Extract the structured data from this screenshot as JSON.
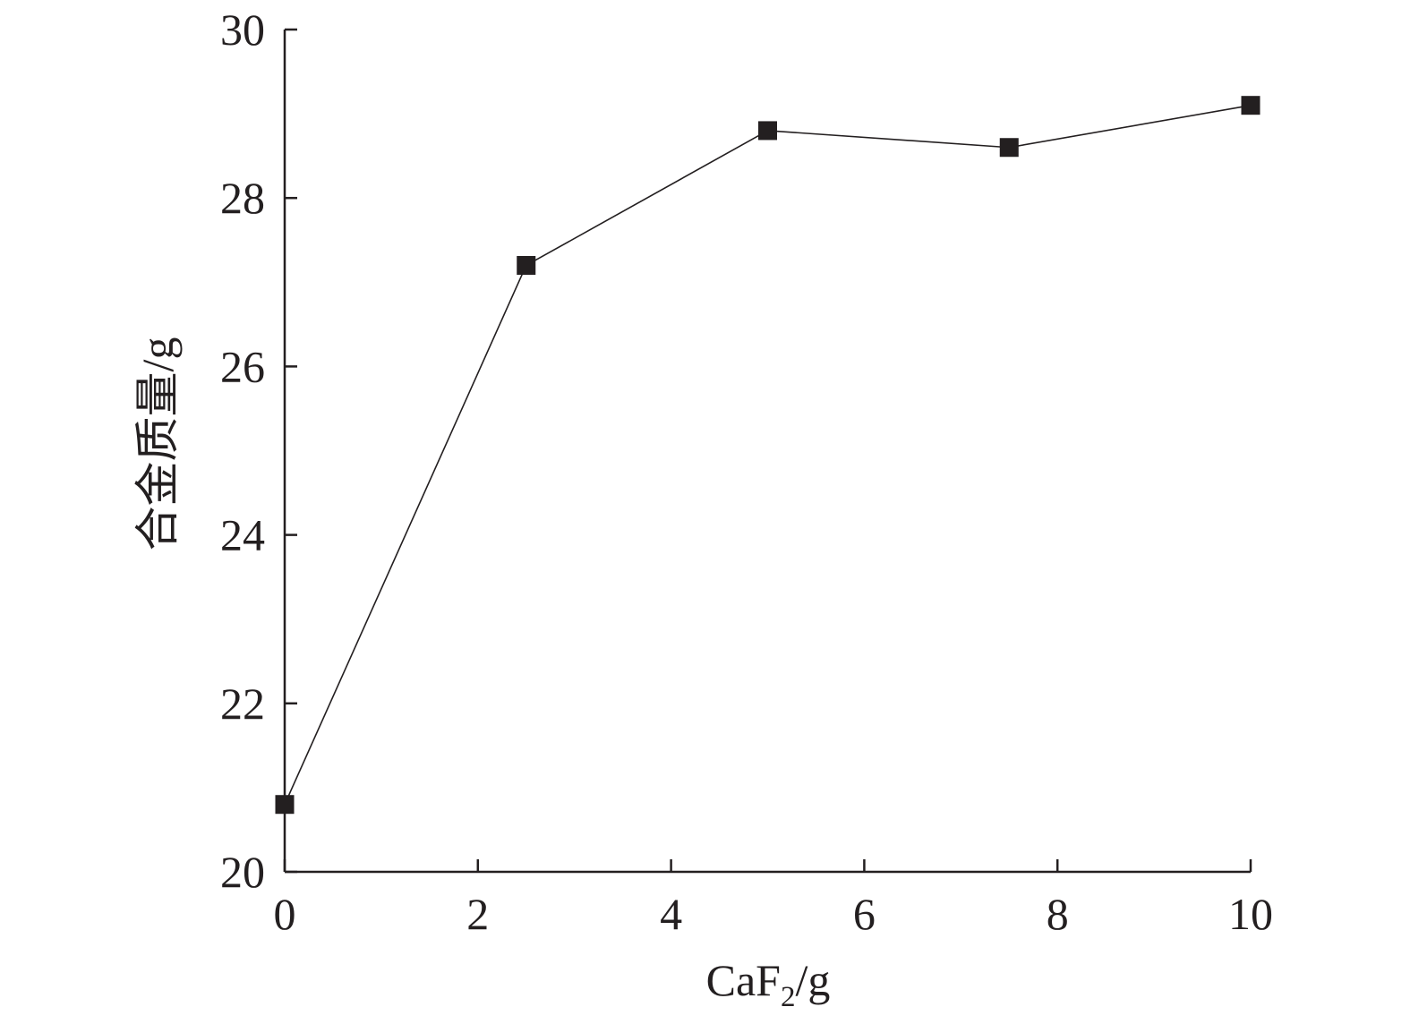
{
  "chart_data": {
    "type": "line",
    "title": "",
    "xlabel_main": "CaF",
    "xlabel_sub": "2",
    "xlabel_tail": "/g",
    "ylabel": "合金质量/g",
    "xlim": [
      0,
      10
    ],
    "ylim": [
      20,
      30
    ],
    "x_ticks": [
      0,
      2,
      4,
      6,
      8,
      10
    ],
    "y_ticks": [
      20,
      22,
      24,
      26,
      28,
      30
    ],
    "grid": false,
    "legend": "none",
    "series": [
      {
        "marker": "square",
        "color": "#231f20",
        "x": [
          0,
          2.5,
          5,
          7.5,
          10
        ],
        "y": [
          20.8,
          27.2,
          28.8,
          28.6,
          29.1
        ]
      }
    ]
  }
}
